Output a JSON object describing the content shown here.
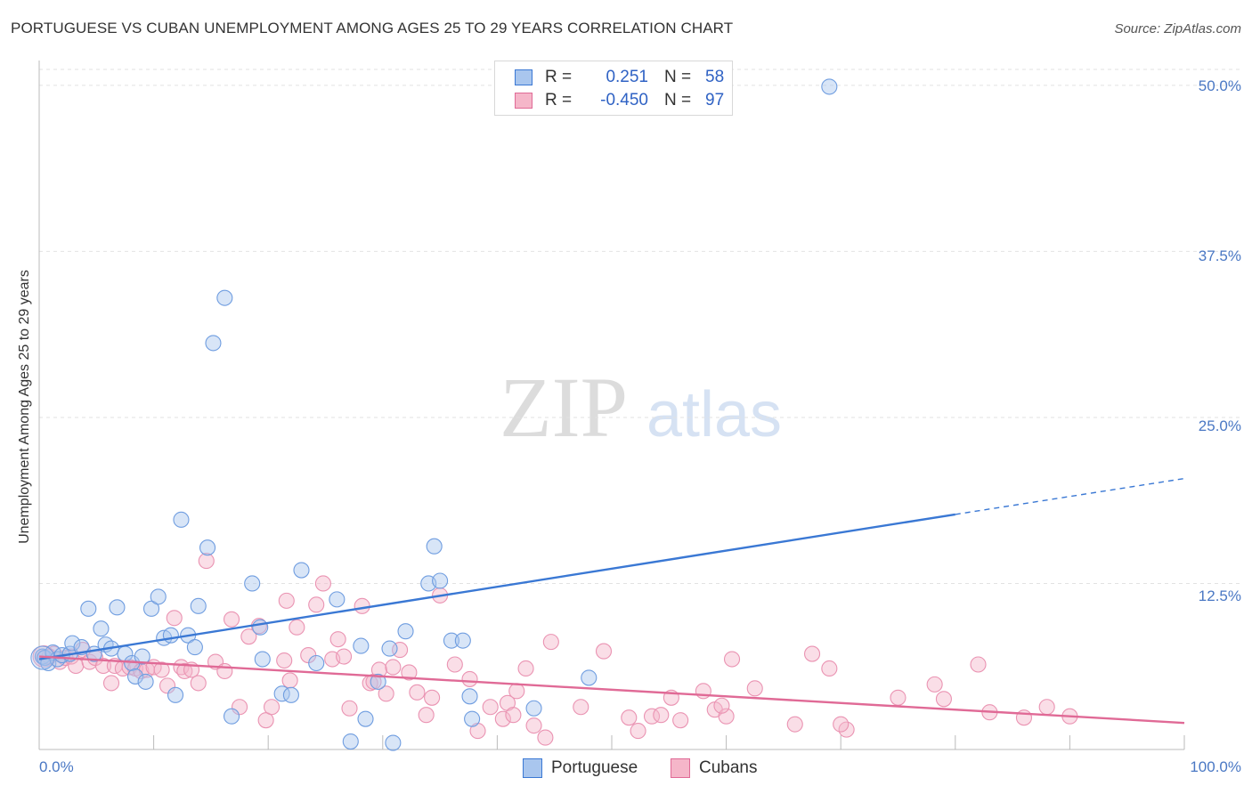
{
  "header": {
    "title": "PORTUGUESE VS CUBAN UNEMPLOYMENT AMONG AGES 25 TO 29 YEARS CORRELATION CHART",
    "source": "Source: ZipAtlas.com"
  },
  "watermark": {
    "zip": "ZIP",
    "atlas": "atlas"
  },
  "legend": {
    "rows": [
      {
        "swatch_color": "#a9c6ee",
        "r_label": "R =",
        "r_value": "0.251",
        "n_label": "N =",
        "n_value": "58"
      },
      {
        "swatch_color": "#f5b6c9",
        "r_label": "R =",
        "r_value": "-0.450",
        "n_label": "N =",
        "n_value": "97"
      }
    ]
  },
  "bottom_legend": [
    {
      "label": "Portuguese",
      "swatch_color": "#a9c6ee"
    },
    {
      "label": "Cubans",
      "swatch_color": "#f5b6c9"
    }
  ],
  "chart_data": {
    "type": "scatter",
    "title": "PORTUGUESE VS CUBAN UNEMPLOYMENT AMONG AGES 25 TO 29 YEARS CORRELATION CHART",
    "xlabel": "",
    "ylabel": "Unemployment Among Ages 25 to 29 years",
    "xlim": [
      0,
      100
    ],
    "ylim": [
      0,
      50
    ],
    "x_tick_labels": [
      "0.0%",
      "100.0%"
    ],
    "y_ticks": [
      12.5,
      25.0,
      37.5,
      50.0
    ],
    "y_tick_labels": [
      "12.5%",
      "25.0%",
      "37.5%",
      "50.0%"
    ],
    "grid": true,
    "colors": {
      "portuguese": "#3a78d4",
      "cubans": "#e06a96",
      "portuguese_fill": "#a9c6ee",
      "cubans_fill": "#f5b6c9"
    },
    "series": [
      {
        "name": "Portuguese",
        "points": [
          [
            0.3,
            7.0
          ],
          [
            0.5,
            6.9
          ],
          [
            0.8,
            6.5
          ],
          [
            1.2,
            7.3
          ],
          [
            1.6,
            6.8
          ],
          [
            2.0,
            7.1
          ],
          [
            2.7,
            7.2
          ],
          [
            2.9,
            8.0
          ],
          [
            3.7,
            7.7
          ],
          [
            4.3,
            10.6
          ],
          [
            4.8,
            7.2
          ],
          [
            5.4,
            9.1
          ],
          [
            5.8,
            7.9
          ],
          [
            6.3,
            7.6
          ],
          [
            6.8,
            10.7
          ],
          [
            7.5,
            7.2
          ],
          [
            8.1,
            6.5
          ],
          [
            8.4,
            5.5
          ],
          [
            9.0,
            7.0
          ],
          [
            9.3,
            5.1
          ],
          [
            9.8,
            10.6
          ],
          [
            10.4,
            11.5
          ],
          [
            10.9,
            8.4
          ],
          [
            11.5,
            8.6
          ],
          [
            11.9,
            4.1
          ],
          [
            12.4,
            17.3
          ],
          [
            13.0,
            8.6
          ],
          [
            13.6,
            7.7
          ],
          [
            13.9,
            10.8
          ],
          [
            14.7,
            15.2
          ],
          [
            15.2,
            30.6
          ],
          [
            16.2,
            34.0
          ],
          [
            16.8,
            2.5
          ],
          [
            18.6,
            12.5
          ],
          [
            19.3,
            9.2
          ],
          [
            19.5,
            6.8
          ],
          [
            21.2,
            4.2
          ],
          [
            22.0,
            4.1
          ],
          [
            22.9,
            13.5
          ],
          [
            24.2,
            6.5
          ],
          [
            26.0,
            11.3
          ],
          [
            27.2,
            0.6
          ],
          [
            28.1,
            7.8
          ],
          [
            28.5,
            2.3
          ],
          [
            29.6,
            5.1
          ],
          [
            30.6,
            7.6
          ],
          [
            30.9,
            0.5
          ],
          [
            32.0,
            8.9
          ],
          [
            34.0,
            12.5
          ],
          [
            34.5,
            15.3
          ],
          [
            35.0,
            12.7
          ],
          [
            36.0,
            8.2
          ],
          [
            37.0,
            8.2
          ],
          [
            37.6,
            4.0
          ],
          [
            37.8,
            2.3
          ],
          [
            43.2,
            3.1
          ],
          [
            48.0,
            5.4
          ],
          [
            69.0,
            49.9
          ]
        ],
        "trend": {
          "x": [
            0,
            80
          ],
          "y": [
            6.8,
            17.7
          ],
          "dashed_extension_to": [
            100,
            20.4
          ]
        }
      },
      {
        "name": "Cubans",
        "points": [
          [
            0.4,
            6.9
          ],
          [
            0.9,
            7.0
          ],
          [
            1.3,
            7.2
          ],
          [
            1.8,
            6.6
          ],
          [
            2.3,
            6.9
          ],
          [
            2.8,
            7.0
          ],
          [
            3.2,
            6.3
          ],
          [
            3.8,
            7.5
          ],
          [
            4.4,
            6.6
          ],
          [
            4.9,
            6.9
          ],
          [
            5.6,
            6.3
          ],
          [
            6.3,
            5.0
          ],
          [
            6.6,
            6.3
          ],
          [
            7.3,
            6.1
          ],
          [
            7.9,
            6.2
          ],
          [
            8.4,
            6.1
          ],
          [
            8.9,
            5.9
          ],
          [
            9.4,
            6.0
          ],
          [
            10.0,
            6.2
          ],
          [
            10.7,
            6.0
          ],
          [
            11.2,
            4.8
          ],
          [
            11.8,
            9.9
          ],
          [
            12.4,
            6.2
          ],
          [
            12.7,
            5.9
          ],
          [
            13.3,
            6.0
          ],
          [
            13.9,
            5.0
          ],
          [
            14.6,
            14.2
          ],
          [
            15.4,
            6.6
          ],
          [
            16.2,
            5.9
          ],
          [
            16.8,
            9.8
          ],
          [
            17.5,
            3.2
          ],
          [
            18.3,
            8.5
          ],
          [
            19.2,
            9.3
          ],
          [
            19.8,
            2.2
          ],
          [
            20.3,
            3.2
          ],
          [
            21.4,
            6.7
          ],
          [
            21.9,
            5.2
          ],
          [
            21.6,
            11.2
          ],
          [
            22.5,
            9.2
          ],
          [
            23.5,
            7.1
          ],
          [
            24.2,
            10.9
          ],
          [
            24.8,
            12.5
          ],
          [
            25.6,
            6.8
          ],
          [
            26.1,
            8.3
          ],
          [
            26.6,
            7.0
          ],
          [
            27.1,
            3.1
          ],
          [
            28.2,
            10.8
          ],
          [
            28.9,
            5.0
          ],
          [
            29.2,
            5.1
          ],
          [
            29.7,
            6.0
          ],
          [
            30.3,
            4.2
          ],
          [
            30.9,
            6.2
          ],
          [
            31.5,
            7.5
          ],
          [
            32.3,
            5.8
          ],
          [
            33.0,
            4.3
          ],
          [
            33.8,
            2.6
          ],
          [
            34.3,
            3.9
          ],
          [
            35.0,
            11.6
          ],
          [
            36.3,
            6.4
          ],
          [
            37.6,
            5.3
          ],
          [
            38.3,
            1.4
          ],
          [
            39.4,
            3.2
          ],
          [
            40.5,
            2.3
          ],
          [
            40.9,
            3.5
          ],
          [
            41.4,
            2.6
          ],
          [
            41.7,
            4.4
          ],
          [
            42.5,
            6.1
          ],
          [
            43.2,
            1.8
          ],
          [
            44.2,
            0.9
          ],
          [
            44.7,
            8.1
          ],
          [
            47.3,
            3.2
          ],
          [
            49.3,
            7.4
          ],
          [
            51.5,
            2.4
          ],
          [
            52.3,
            1.4
          ],
          [
            53.5,
            2.5
          ],
          [
            54.3,
            2.6
          ],
          [
            55.2,
            3.9
          ],
          [
            56.0,
            2.2
          ],
          [
            58.0,
            4.4
          ],
          [
            59.0,
            3.0
          ],
          [
            60.0,
            2.5
          ],
          [
            59.6,
            3.3
          ],
          [
            60.5,
            6.8
          ],
          [
            62.5,
            4.6
          ],
          [
            66.0,
            1.9
          ],
          [
            67.5,
            7.2
          ],
          [
            69.0,
            6.1
          ],
          [
            70.5,
            1.5
          ],
          [
            70.0,
            1.9
          ],
          [
            75.0,
            3.9
          ],
          [
            78.2,
            4.9
          ],
          [
            79.0,
            3.8
          ],
          [
            82.0,
            6.4
          ],
          [
            83.0,
            2.8
          ],
          [
            86.0,
            2.4
          ],
          [
            88.0,
            3.2
          ],
          [
            90.0,
            2.5
          ]
        ],
        "trend": {
          "x": [
            0,
            100
          ],
          "y": [
            7.0,
            2.0
          ]
        }
      }
    ]
  }
}
